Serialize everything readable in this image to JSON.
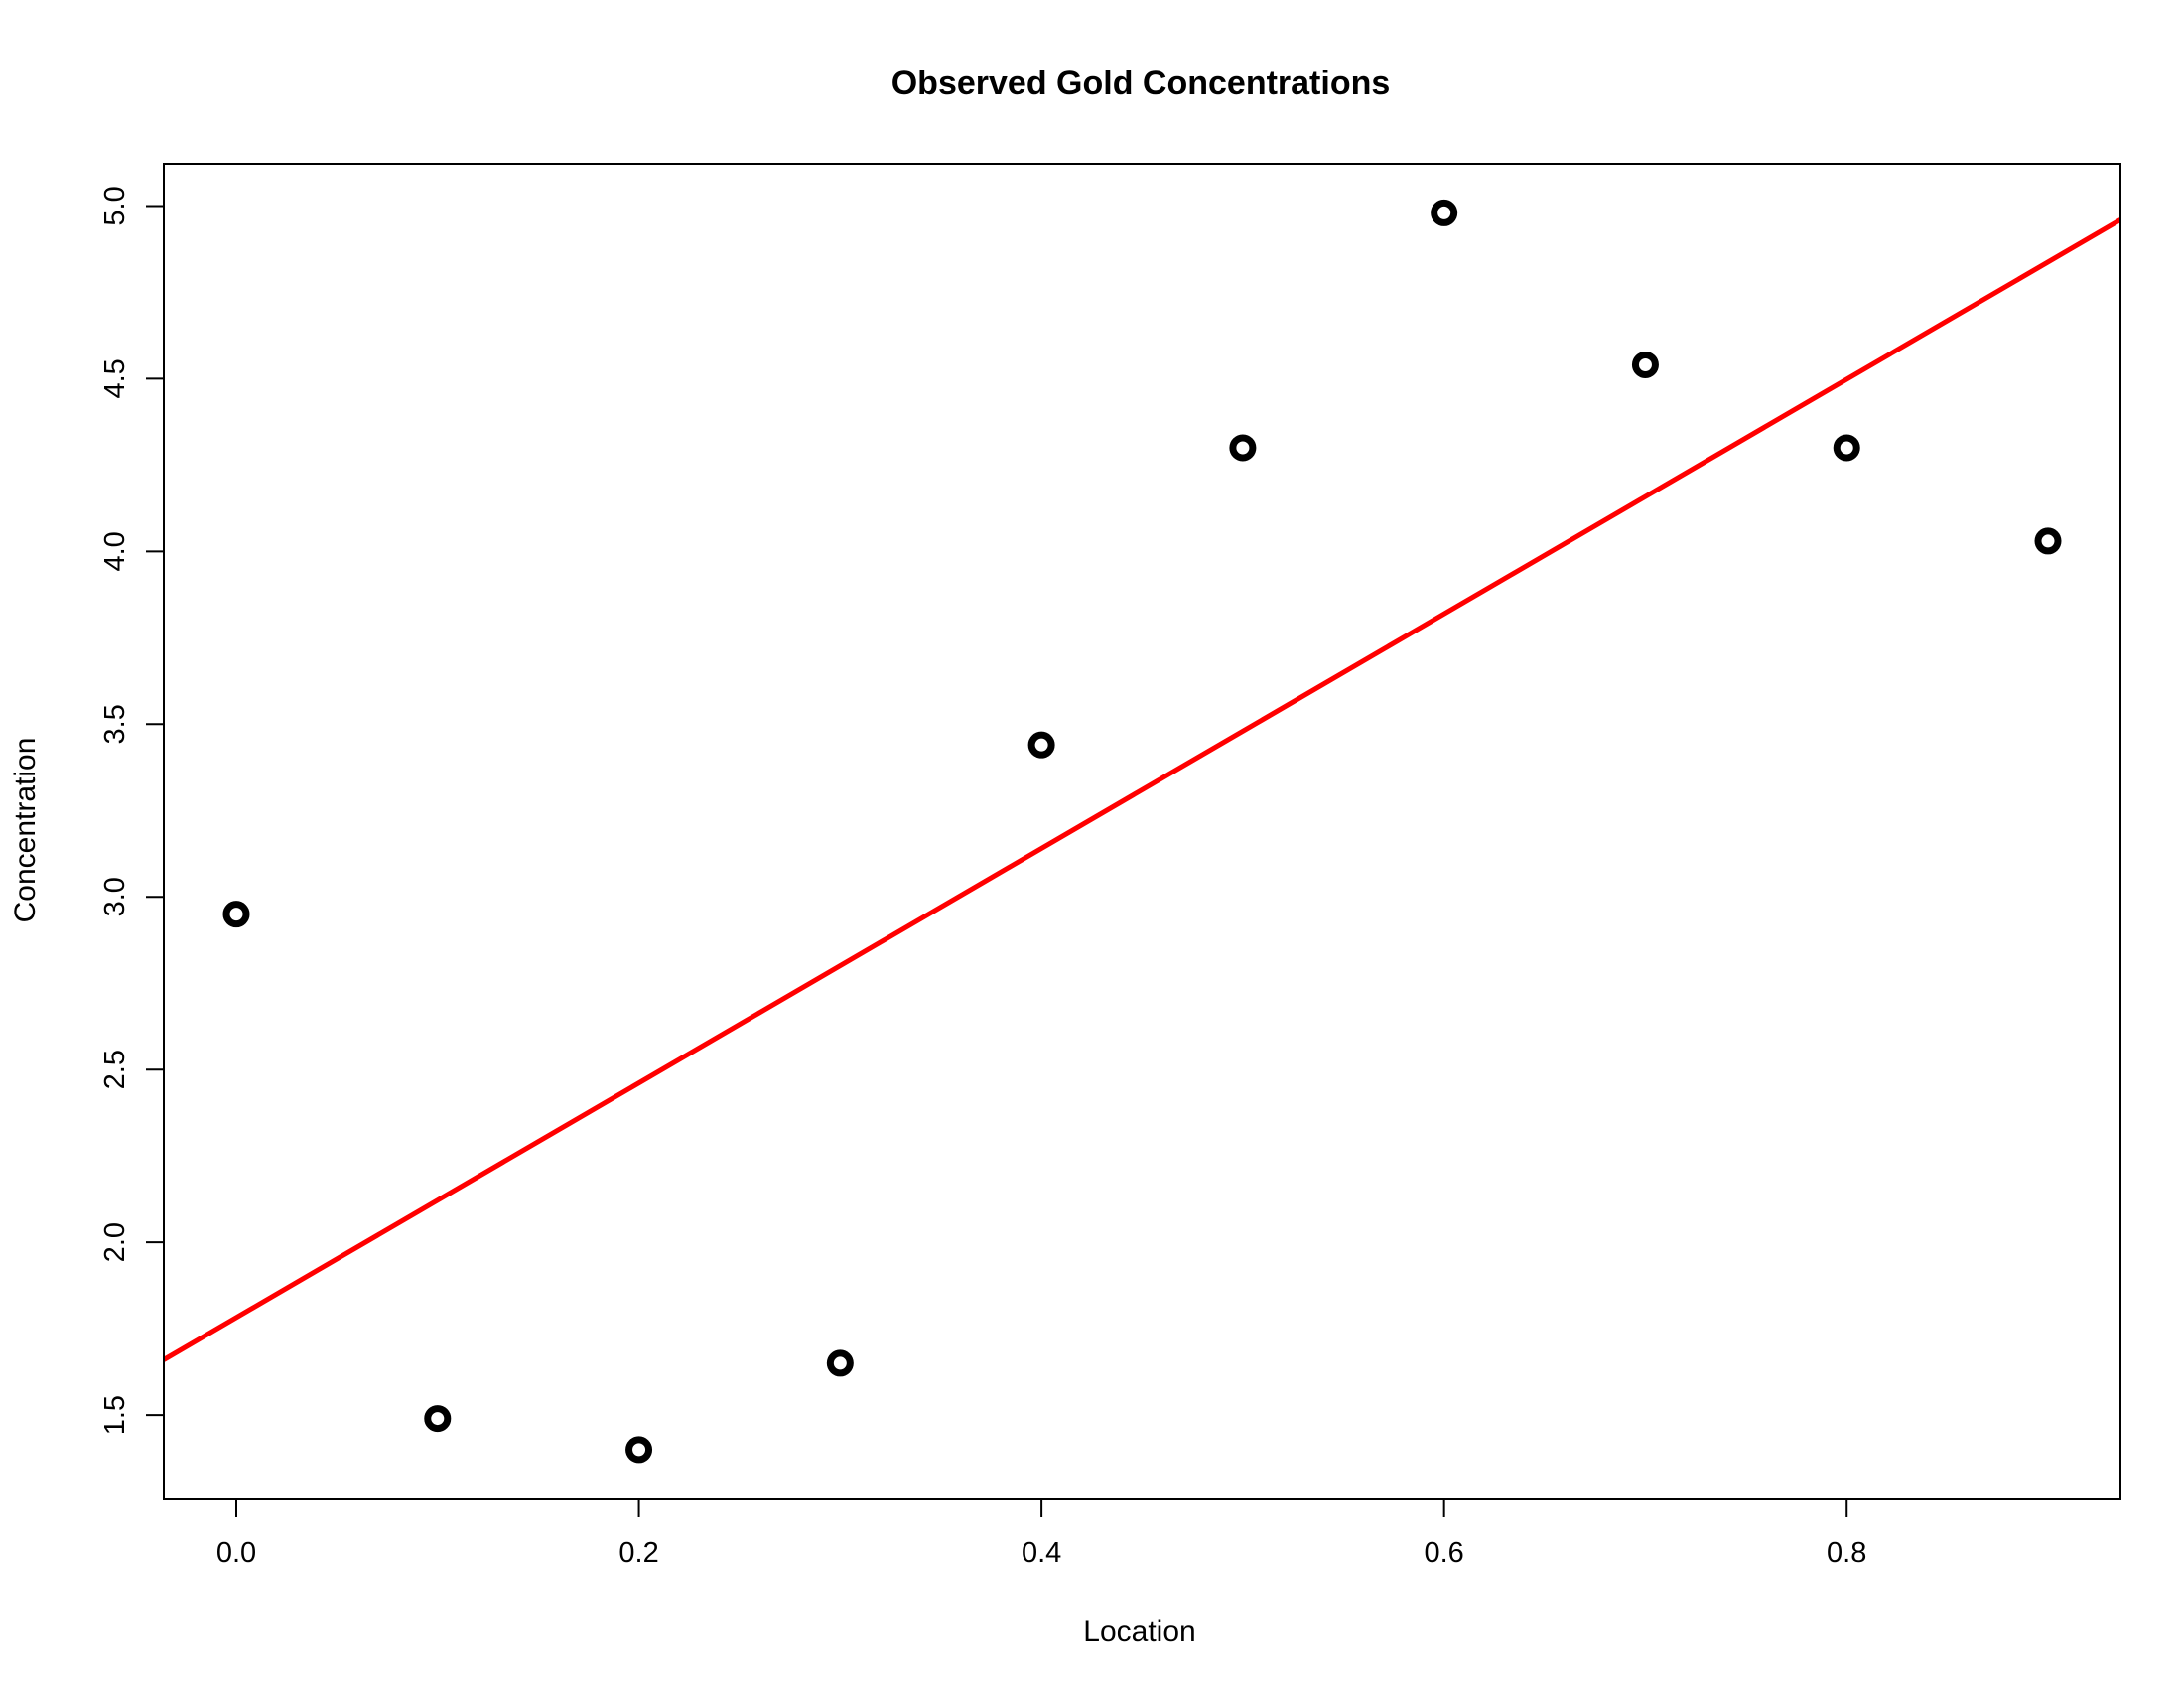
{
  "chart_data": {
    "type": "scatter",
    "title": "Observed Gold Concentrations",
    "xlabel": "Location",
    "ylabel": "Concentration",
    "x_ticks": [
      "0.0",
      "0.2",
      "0.4",
      "0.6",
      "0.8"
    ],
    "y_ticks": [
      "1.5",
      "2.0",
      "2.5",
      "3.0",
      "3.5",
      "4.0",
      "4.5",
      "5.0"
    ],
    "xlim": [
      -0.036,
      0.936
    ],
    "ylim": [
      1.256,
      5.122
    ],
    "grid": false,
    "legend": "none",
    "series": [
      {
        "type": "scatter",
        "color": "#000000",
        "x": [
          0.0,
          0.1,
          0.2,
          0.3,
          0.4,
          0.5,
          0.6,
          0.7,
          0.8,
          0.9
        ],
        "y": [
          2.95,
          1.49,
          1.4,
          1.65,
          3.44,
          4.3,
          4.98,
          4.54,
          4.3,
          4.03
        ]
      },
      {
        "type": "line",
        "color": "#ff0000",
        "x": [
          -0.036,
          0.936
        ],
        "y": [
          1.66,
          4.96
        ]
      }
    ]
  }
}
